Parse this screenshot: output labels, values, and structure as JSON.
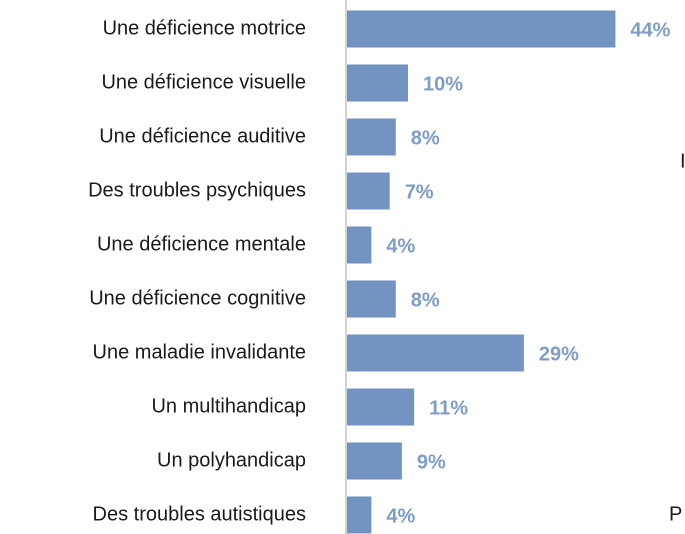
{
  "chart_data": {
    "type": "bar",
    "orientation": "horizontal",
    "categories": [
      "Une déficience motrice",
      "Une déficience visuelle",
      "Une déficience auditive",
      "Des troubles psychiques",
      "Une déficience mentale",
      "Une déficience cognitive",
      "Une maladie invalidante",
      "Un multihandicap",
      "Un polyhandicap",
      "Des troubles autistiques"
    ],
    "values": [
      44,
      10,
      8,
      7,
      4,
      8,
      29,
      11,
      9,
      4
    ],
    "value_labels": [
      "44%",
      "10%",
      "8%",
      "7%",
      "4%",
      "8%",
      "29%",
      "11%",
      "9%",
      "4%"
    ],
    "color": "#7394c0",
    "annotations": [
      "I",
      "P"
    ]
  }
}
